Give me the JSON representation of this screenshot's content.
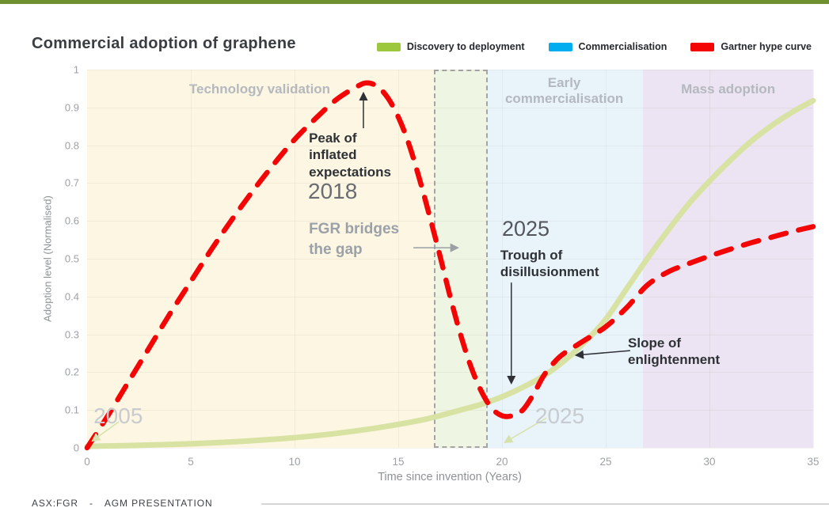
{
  "page": {
    "title": "Commercial adoption of graphene",
    "topbar_color": "#6f9030",
    "footer": {
      "ticker": "ASX:FGR",
      "separator": "-",
      "label": "AGM PRESENTATION"
    }
  },
  "legend": [
    {
      "label": "Discovery to deployment",
      "color": "#9bc83c"
    },
    {
      "label": "Commercialisation",
      "color": "#00aeef"
    },
    {
      "label": "Gartner hype curve",
      "color": "#f40505"
    }
  ],
  "chart_data": {
    "type": "line",
    "title": "Commercial adoption of graphene",
    "xlabel": "Time since invention (Years)",
    "ylabel": "Adoption level (Normalised)",
    "xlim": [
      0,
      35
    ],
    "ylim": [
      0,
      1
    ],
    "xticks": [
      0,
      5,
      10,
      15,
      20,
      25,
      30,
      35
    ],
    "yticks": [
      0,
      0.1,
      0.2,
      0.3,
      0.4,
      0.5,
      0.6,
      0.7,
      0.8,
      0.9,
      1
    ],
    "grid": true,
    "legend_position": "top-right",
    "regions": [
      {
        "label": "Technology validation",
        "x0": 0,
        "x1": 16.7,
        "color": "#fdf6e2",
        "dashed_border": false
      },
      {
        "label": "FGR bridges the gap",
        "x0": 16.7,
        "x1": 19.3,
        "color": "#eef5e2",
        "dashed_border": true
      },
      {
        "label": "Early commercialisation",
        "x0": 19.3,
        "x1": 26.8,
        "color": "#e9f4fa",
        "dashed_border": false
      },
      {
        "label": "Mass adoption",
        "x0": 26.8,
        "x1": 35,
        "color": "#ece4f2",
        "dashed_border": false
      }
    ],
    "series": [
      {
        "name": "Discovery to deployment",
        "color": "#d8e2a3",
        "style": "solid",
        "width": 7,
        "points": [
          [
            0,
            0.004
          ],
          [
            2,
            0.006
          ],
          [
            4,
            0.009
          ],
          [
            6,
            0.013
          ],
          [
            8,
            0.019
          ],
          [
            10,
            0.027
          ],
          [
            12,
            0.038
          ],
          [
            14,
            0.053
          ],
          [
            16,
            0.072
          ],
          [
            17,
            0.085
          ],
          [
            18,
            0.1
          ],
          [
            19,
            0.115
          ],
          [
            20,
            0.135
          ],
          [
            21,
            0.16
          ],
          [
            22,
            0.19
          ],
          [
            23,
            0.23
          ],
          [
            24,
            0.28
          ],
          [
            25,
            0.34
          ],
          [
            26,
            0.42
          ],
          [
            27,
            0.5
          ],
          [
            28,
            0.575
          ],
          [
            29,
            0.645
          ],
          [
            30,
            0.705
          ],
          [
            31,
            0.76
          ],
          [
            32,
            0.81
          ],
          [
            33,
            0.852
          ],
          [
            34,
            0.888
          ],
          [
            35,
            0.918
          ]
        ]
      },
      {
        "name": "Gartner hype curve",
        "color": "#f40505",
        "style": "dashed",
        "width": 6.5,
        "points": [
          [
            0,
            0
          ],
          [
            1,
            0.085
          ],
          [
            2,
            0.175
          ],
          [
            3,
            0.265
          ],
          [
            4,
            0.355
          ],
          [
            5,
            0.44
          ],
          [
            6,
            0.525
          ],
          [
            7,
            0.605
          ],
          [
            8,
            0.68
          ],
          [
            9,
            0.75
          ],
          [
            10,
            0.815
          ],
          [
            11,
            0.87
          ],
          [
            12,
            0.92
          ],
          [
            13,
            0.955
          ],
          [
            13.5,
            0.965
          ],
          [
            14,
            0.955
          ],
          [
            14.5,
            0.925
          ],
          [
            15,
            0.875
          ],
          [
            15.5,
            0.805
          ],
          [
            16,
            0.715
          ],
          [
            16.5,
            0.615
          ],
          [
            17,
            0.51
          ],
          [
            17.5,
            0.4
          ],
          [
            18,
            0.3
          ],
          [
            18.5,
            0.215
          ],
          [
            19,
            0.15
          ],
          [
            19.5,
            0.105
          ],
          [
            20,
            0.085
          ],
          [
            20.5,
            0.085
          ],
          [
            21,
            0.1
          ],
          [
            21.5,
            0.14
          ],
          [
            22,
            0.19
          ],
          [
            22.5,
            0.225
          ],
          [
            23,
            0.25
          ],
          [
            24,
            0.285
          ],
          [
            25,
            0.32
          ],
          [
            26,
            0.37
          ],
          [
            27,
            0.43
          ],
          [
            28,
            0.465
          ],
          [
            29,
            0.487
          ],
          [
            30,
            0.507
          ],
          [
            31,
            0.525
          ],
          [
            32,
            0.542
          ],
          [
            33,
            0.557
          ],
          [
            34,
            0.572
          ],
          [
            35,
            0.585
          ]
        ]
      }
    ],
    "annotations": [
      {
        "name": "region-label-technology-validation",
        "text": "Technology validation",
        "x": 8.32,
        "y": 0.969,
        "style": "region-label",
        "center": true
      },
      {
        "name": "region-label-early-commercialisation",
        "text": "Early\ncommercialisation",
        "x": 23.0,
        "y": 0.985,
        "style": "region-label",
        "center": true
      },
      {
        "name": "region-label-mass-adoption",
        "text": "Mass adoption",
        "x": 30.9,
        "y": 0.969,
        "style": "region-label",
        "center": true
      },
      {
        "name": "annotation-peak-of-inflated-expectations",
        "text": "Peak of\ninflated\nexpectations",
        "x": 10.69,
        "y": 0.841,
        "style": "dark-bold",
        "center": false
      },
      {
        "name": "annotation-year-2018",
        "text": "2018",
        "x": 10.65,
        "y": 0.712,
        "style": "year-mid",
        "center": false
      },
      {
        "name": "annotation-fgr-bridges-the-gap",
        "text": "FGR bridges\nthe gap",
        "x": 10.69,
        "y": 0.605,
        "style": "gray-bold",
        "center": false
      },
      {
        "name": "annotation-year-2025-trough",
        "text": "2025",
        "x": 20.0,
        "y": 0.611,
        "style": "year-dark",
        "center": false
      },
      {
        "name": "annotation-trough-of-disillusionment",
        "text": "Trough of\ndisillusionment",
        "x": 19.92,
        "y": 0.531,
        "style": "dark-bold",
        "center": false
      },
      {
        "name": "annotation-slope-of-enlightenment",
        "text": "Slope of\nenlightenment",
        "x": 26.07,
        "y": 0.299,
        "style": "dark-bold",
        "center": false
      },
      {
        "name": "annotation-year-2005",
        "text": "2005",
        "x": 0.31,
        "y": 0.117,
        "style": "year-light",
        "center": false
      },
      {
        "name": "annotation-year-2025-start",
        "text": "2025",
        "x": 21.6,
        "y": 0.117,
        "style": "year-light",
        "center": false
      }
    ],
    "arrows": [
      {
        "name": "peak-arrow",
        "from": [
          13.32,
          0.845
        ],
        "to": [
          13.32,
          0.937
        ],
        "color": "black"
      },
      {
        "name": "trough-arrow",
        "from": [
          20.45,
          0.437
        ],
        "to": [
          20.45,
          0.172
        ],
        "color": "black"
      },
      {
        "name": "slope-arrow",
        "from": [
          26.18,
          0.257
        ],
        "to": [
          23.59,
          0.245
        ],
        "color": "black"
      },
      {
        "name": "fgr-gap-arrow",
        "from": [
          15.73,
          0.529
        ],
        "to": [
          17.85,
          0.529
        ],
        "color": "gray"
      },
      {
        "name": "start-2005-arrow",
        "from": [
          1.53,
          0.069
        ],
        "to": [
          0.27,
          0.019
        ],
        "color": "green"
      },
      {
        "name": "start-2025-arrow",
        "from": [
          22.14,
          0.079
        ],
        "to": [
          20.15,
          0.015
        ],
        "color": "green"
      }
    ],
    "arrow_colors": {
      "black": "#2f3136",
      "gray": "#9aa0a6",
      "green": "#d7e1ab"
    }
  }
}
